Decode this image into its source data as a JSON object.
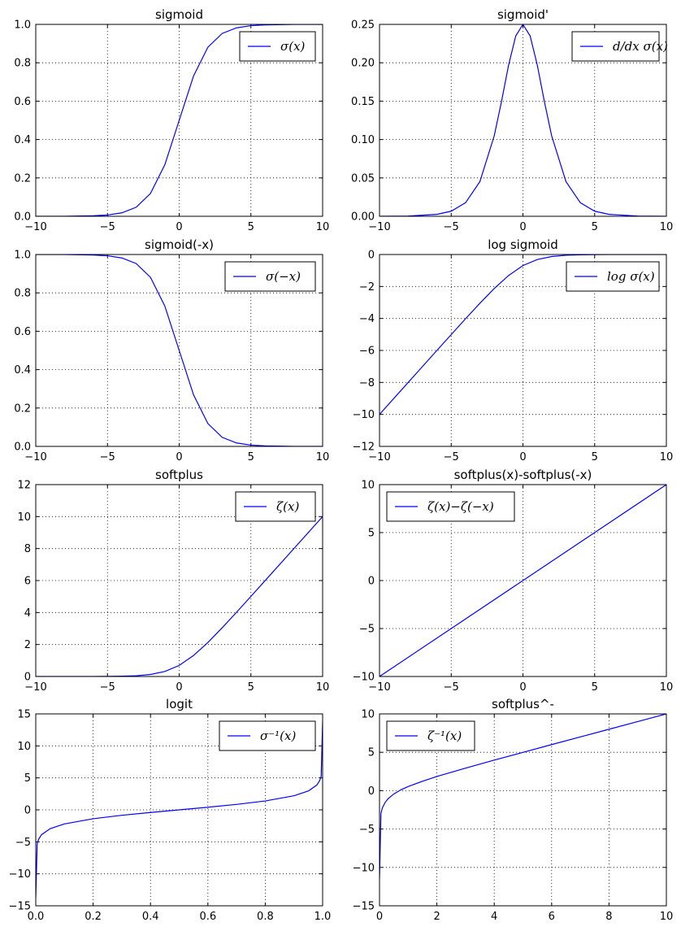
{
  "chart_data": [
    {
      "type": "line",
      "title": "sigmoid",
      "xlim": [
        -10,
        10
      ],
      "ylim": [
        0,
        1.0
      ],
      "xticks": [
        "−10",
        "−5",
        "0",
        "5",
        "10"
      ],
      "yticks": [
        "0.0",
        "0.2",
        "0.4",
        "0.6",
        "0.8",
        "1.0"
      ],
      "grid": true,
      "legend": "top-right",
      "series": [
        {
          "name": "σ(x)",
          "x": [
            -10,
            -8,
            -6,
            -5,
            -4,
            -3,
            -2,
            -1,
            0,
            1,
            2,
            3,
            4,
            5,
            6,
            8,
            10
          ],
          "y": [
            5e-05,
            0.0003,
            0.0025,
            0.0067,
            0.018,
            0.047,
            0.119,
            0.269,
            0.5,
            0.731,
            0.881,
            0.953,
            0.982,
            0.9933,
            0.9975,
            0.9997,
            0.99995
          ]
        }
      ]
    },
    {
      "type": "line",
      "title": "sigmoid'",
      "xlim": [
        -10,
        10
      ],
      "ylim": [
        0,
        0.25
      ],
      "xticks": [
        "−10",
        "−5",
        "0",
        "5",
        "10"
      ],
      "yticks": [
        "0.00",
        "0.05",
        "0.10",
        "0.15",
        "0.20",
        "0.25"
      ],
      "grid": true,
      "legend": "top-right",
      "series": [
        {
          "name": "d/dx σ(x)",
          "x": [
            -10,
            -8,
            -6,
            -5,
            -4,
            -3,
            -2,
            -1.5,
            -1,
            -0.5,
            0,
            0.5,
            1,
            1.5,
            2,
            3,
            4,
            5,
            6,
            8,
            10
          ],
          "y": [
            5e-05,
            0.0003,
            0.0025,
            0.0066,
            0.0177,
            0.0452,
            0.105,
            0.149,
            0.197,
            0.235,
            0.25,
            0.235,
            0.197,
            0.149,
            0.105,
            0.0452,
            0.0177,
            0.0066,
            0.0025,
            0.0003,
            5e-05
          ]
        }
      ]
    },
    {
      "type": "line",
      "title": "sigmoid(-x)",
      "xlim": [
        -10,
        10
      ],
      "ylim": [
        0,
        1.0
      ],
      "xticks": [
        "−10",
        "−5",
        "0",
        "5",
        "10"
      ],
      "yticks": [
        "0.0",
        "0.2",
        "0.4",
        "0.6",
        "0.8",
        "1.0"
      ],
      "grid": true,
      "legend": "top-right",
      "series": [
        {
          "name": "σ(−x)",
          "x": [
            -10,
            -8,
            -6,
            -5,
            -4,
            -3,
            -2,
            -1,
            0,
            1,
            2,
            3,
            4,
            5,
            6,
            8,
            10
          ],
          "y": [
            0.99995,
            0.9997,
            0.9975,
            0.9933,
            0.982,
            0.953,
            0.881,
            0.731,
            0.5,
            0.269,
            0.119,
            0.047,
            0.018,
            0.0067,
            0.0025,
            0.0003,
            5e-05
          ]
        }
      ]
    },
    {
      "type": "line",
      "title": "log sigmoid",
      "xlim": [
        -10,
        10
      ],
      "ylim": [
        -12,
        0
      ],
      "xticks": [
        "−10",
        "−5",
        "0",
        "5",
        "10"
      ],
      "yticks": [
        "−12",
        "−10",
        "−8",
        "−6",
        "−4",
        "−2",
        "0"
      ],
      "grid": true,
      "legend": "top-right",
      "series": [
        {
          "name": "log σ(x)",
          "x": [
            -10,
            -8,
            -6,
            -5,
            -4,
            -3,
            -2,
            -1,
            0,
            1,
            2,
            3,
            4,
            5,
            6,
            8,
            10
          ],
          "y": [
            -10.0,
            -8.0,
            -6.0,
            -5.007,
            -4.018,
            -3.049,
            -2.127,
            -1.313,
            -0.693,
            -0.313,
            -0.127,
            -0.049,
            -0.018,
            -0.0067,
            -0.0025,
            -0.0003,
            -5e-05
          ]
        }
      ]
    },
    {
      "type": "line",
      "title": "softplus",
      "xlim": [
        -10,
        10
      ],
      "ylim": [
        0,
        12
      ],
      "xticks": [
        "−10",
        "−5",
        "0",
        "5",
        "10"
      ],
      "yticks": [
        "0",
        "2",
        "4",
        "6",
        "8",
        "10",
        "12"
      ],
      "grid": true,
      "legend": "top-right",
      "series": [
        {
          "name": "ζ(x)",
          "x": [
            -10,
            -8,
            -6,
            -5,
            -4,
            -3,
            -2,
            -1,
            0,
            1,
            2,
            3,
            4,
            5,
            6,
            8,
            10
          ],
          "y": [
            5e-05,
            0.0003,
            0.0025,
            0.0067,
            0.018,
            0.049,
            0.127,
            0.313,
            0.693,
            1.313,
            2.127,
            3.049,
            4.018,
            5.007,
            6.002,
            8.0003,
            10.00005
          ]
        }
      ]
    },
    {
      "type": "line",
      "title": "softplus(x)-softplus(-x)",
      "xlim": [
        -10,
        10
      ],
      "ylim": [
        -10,
        10
      ],
      "xticks": [
        "−10",
        "−5",
        "0",
        "5",
        "10"
      ],
      "yticks": [
        "−10",
        "−5",
        "0",
        "5",
        "10"
      ],
      "grid": true,
      "legend": "top-left",
      "series": [
        {
          "name": "ζ(x)−ζ(−x)",
          "x": [
            -10,
            -5,
            0,
            5,
            10
          ],
          "y": [
            -10,
            -5,
            0,
            5,
            10
          ]
        }
      ]
    },
    {
      "type": "line",
      "title": "logit",
      "xlim": [
        0,
        1.0
      ],
      "ylim": [
        -15,
        15
      ],
      "xticks": [
        "0.0",
        "0.2",
        "0.4",
        "0.6",
        "0.8",
        "1.0"
      ],
      "yticks": [
        "−15",
        "−10",
        "−5",
        "0",
        "5",
        "10",
        "15"
      ],
      "grid": true,
      "legend": "top-right",
      "series": [
        {
          "name": "σ⁻¹(x)",
          "x": [
            1e-06,
            0.005,
            0.01,
            0.02,
            0.05,
            0.1,
            0.2,
            0.3,
            0.4,
            0.5,
            0.6,
            0.7,
            0.8,
            0.9,
            0.95,
            0.98,
            0.99,
            0.995,
            0.999999
          ],
          "y": [
            -13.8,
            -5.29,
            -4.6,
            -3.89,
            -2.94,
            -2.2,
            -1.39,
            -0.85,
            -0.41,
            0,
            0.41,
            0.85,
            1.39,
            2.2,
            2.94,
            3.89,
            4.6,
            5.29,
            13.8
          ]
        }
      ]
    },
    {
      "type": "line",
      "title": "softplus^-",
      "xlim": [
        0,
        10
      ],
      "ylim": [
        -15,
        10
      ],
      "xticks": [
        "0",
        "2",
        "4",
        "6",
        "8",
        "10"
      ],
      "yticks": [
        "−15",
        "−10",
        "−5",
        "0",
        "5",
        "10"
      ],
      "grid": true,
      "legend": "top-left",
      "series": [
        {
          "name": "ζ⁻¹(x)",
          "x": [
            1e-05,
            0.05,
            0.1,
            0.2,
            0.3,
            0.5,
            0.75,
            1,
            1.5,
            2,
            3,
            4,
            5,
            6,
            7,
            8,
            9,
            10
          ],
          "y": [
            -11.5,
            -2.97,
            -2.25,
            -1.51,
            -1.05,
            -0.43,
            0.12,
            0.54,
            1.23,
            1.85,
            2.94,
            3.98,
            4.99,
            6.0,
            7.0,
            8.0,
            9.0,
            10.0
          ]
        }
      ]
    }
  ]
}
